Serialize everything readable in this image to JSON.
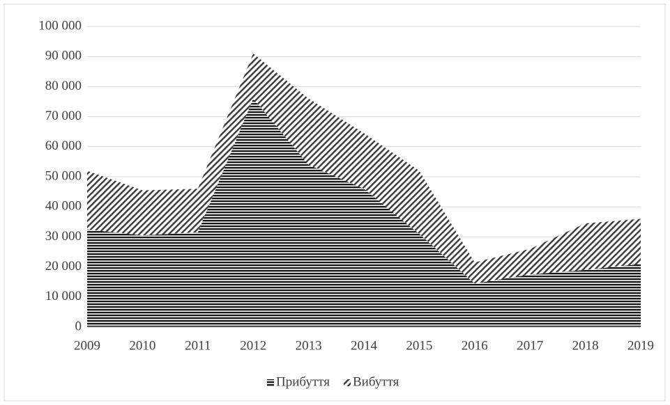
{
  "chart_data": {
    "type": "stacked_area",
    "categories": [
      "2009",
      "2010",
      "2011",
      "2012",
      "2013",
      "2014",
      "2015",
      "2016",
      "2017",
      "2018",
      "2019"
    ],
    "series": [
      {
        "name": "Прибуття",
        "color": "#1a1a1a",
        "values": [
          32500,
          30500,
          31500,
          76000,
          54000,
          46000,
          31000,
          14500,
          17500,
          19000,
          21000
        ]
      },
      {
        "name": "Вибуття",
        "color": "#3a3a3a",
        "values": [
          19500,
          15000,
          14500,
          15000,
          22000,
          18500,
          21000,
          7000,
          8500,
          15500,
          15000
        ]
      }
    ],
    "ylim": [
      0,
      100000
    ],
    "yticks": [
      0,
      {
        "value": 10000,
        "label": "10 000"
      },
      {
        "value": 20000,
        "label": "20 000"
      },
      {
        "value": 30000,
        "label": "30 000"
      },
      {
        "value": 40000,
        "label": "40 000"
      },
      {
        "value": 50000,
        "label": "50 000"
      },
      {
        "value": 60000,
        "label": "60 000"
      },
      {
        "value": 70000,
        "label": "70 000"
      },
      {
        "value": 80000,
        "label": "80 000"
      },
      {
        "value": 90000,
        "label": "90 000"
      },
      {
        "value": 100000,
        "label": "100 000"
      }
    ],
    "grid": true,
    "legend": "bottom"
  }
}
